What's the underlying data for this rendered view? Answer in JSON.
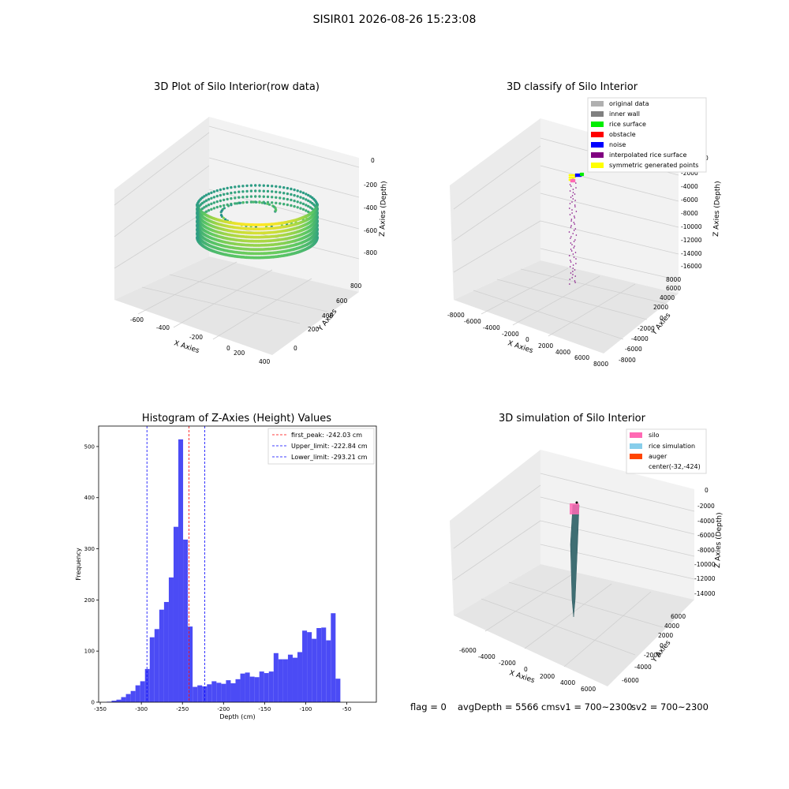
{
  "figure_title": "SISIR01 2026-08-26 15:23:08",
  "status_line": {
    "flag": "flag = 0",
    "avg_depth": "avgDepth = 5566 cmsv1 = 700~2300",
    "sv2": "sv2 = 700~2300"
  },
  "colors": {
    "hist_bar": "#4b4bf5",
    "first_peak_line": "#ff0000",
    "limit_lines": "#0000ff",
    "original_data": "#b0b0b0",
    "inner_wall": "#808080",
    "rice_surface": "#00ee00",
    "obstacle": "#ff0000",
    "noise": "#0000ff",
    "interpolated_rice_surface": "#800080",
    "symmetric_generated_points": "#ffff00",
    "silo": "#ff69b4",
    "rice_simulation": "#87ceeb",
    "auger": "#ff4500"
  },
  "chart_data": [
    {
      "type": "scatter",
      "projection": "3d",
      "title": "3D Plot of Silo Interior(row data)",
      "xlabel": "X Axies",
      "ylabel": "Y Axies",
      "zlabel": "Z Axies (Depth)",
      "x_ticks": [
        "-600",
        "-400",
        "-200",
        "0",
        "200",
        "400"
      ],
      "y_ticks": [
        "0",
        "200",
        "400",
        "600",
        "800"
      ],
      "z_ticks": [
        "0",
        "-200",
        "-400",
        "-600",
        "-800"
      ],
      "xlim": [
        -700,
        420
      ],
      "ylim": [
        -50,
        900
      ],
      "zlim": [
        -900,
        0
      ],
      "colormap": "viridis",
      "grid": true
    },
    {
      "type": "scatter",
      "projection": "3d",
      "title": "3D classify of Silo Interior",
      "xlabel": "X Axies",
      "ylabel": "Y Axies",
      "zlabel": "Z Axies (Depth)",
      "x_ticks": [
        "-8000",
        "-6000",
        "-4000",
        "-2000",
        "0",
        "2000",
        "4000",
        "6000",
        "8000"
      ],
      "y_ticks": [
        "-8000",
        "-6000",
        "-4000",
        "-2000",
        "0",
        "2000",
        "4000",
        "6000",
        "8000"
      ],
      "z_ticks": [
        "0",
        "-2000",
        "-4000",
        "-6000",
        "-8000",
        "-10000",
        "-12000",
        "-14000",
        "-16000"
      ],
      "legend": {
        "position": "top-right",
        "entries": [
          {
            "label": "original data",
            "color": "#b0b0b0"
          },
          {
            "label": "inner wall",
            "color": "#808080"
          },
          {
            "label": "rice surface",
            "color": "#00ee00"
          },
          {
            "label": "obstacle",
            "color": "#ff0000"
          },
          {
            "label": "noise",
            "color": "#0000ff"
          },
          {
            "label": "interpolated rice surface",
            "color": "#800080"
          },
          {
            "label": "symmetric generated points",
            "color": "#ffff00"
          }
        ]
      },
      "grid": true
    },
    {
      "type": "bar",
      "subtype": "histogram",
      "title": "Histogram of Z-Axies (Height) Values",
      "xlabel": "Depth (cm)",
      "ylabel": "Frequency",
      "xlim": [
        -352,
        -14
      ],
      "ylim": [
        0,
        540
      ],
      "x_ticks": [
        -350,
        -300,
        -250,
        -200,
        -150,
        -100,
        -50
      ],
      "y_ticks": [
        0,
        100,
        200,
        300,
        400,
        500
      ],
      "bin_start": -342,
      "bin_width": 5.8,
      "values": [
        1,
        3,
        5,
        10,
        16,
        22,
        33,
        41,
        65,
        127,
        143,
        181,
        196,
        244,
        343,
        514,
        318,
        148,
        30,
        33,
        31,
        35,
        41,
        38,
        36,
        43,
        37,
        45,
        56,
        58,
        50,
        49,
        60,
        57,
        60,
        96,
        84,
        84,
        93,
        87,
        98,
        140,
        137,
        124,
        145,
        146,
        121,
        174,
        46
      ],
      "vlines": [
        {
          "label": "first_peak: -242.03 cm",
          "x": -242.03,
          "color": "#ff0000"
        },
        {
          "label": "Upper_limit: -222.84 cm",
          "x": -222.84,
          "color": "#0000ff"
        },
        {
          "label": "Lower_limit: -293.21 cm",
          "x": -293.21,
          "color": "#0000ff"
        }
      ],
      "legend": {
        "position": "top-right"
      },
      "grid": false
    },
    {
      "type": "scatter",
      "projection": "3d",
      "title": "3D simulation of Silo Interior",
      "xlabel": "X Axies",
      "ylabel": "Y Axies",
      "zlabel": "Z Axies (Depth)",
      "x_ticks": [
        "-6000",
        "-4000",
        "-2000",
        "0",
        "2000",
        "4000",
        "6000"
      ],
      "y_ticks": [
        "-6000",
        "-4000",
        "-2000",
        "0",
        "2000",
        "4000",
        "6000"
      ],
      "z_ticks": [
        "0",
        "-2000",
        "-4000",
        "-6000",
        "-8000",
        "-10000",
        "-12000",
        "-14000"
      ],
      "legend": {
        "position": "top-right",
        "entries": [
          {
            "label": "silo",
            "color": "#ff69b4"
          },
          {
            "label": "rice simulation",
            "color": "#87ceeb"
          },
          {
            "label": "auger",
            "color": "#ff4500"
          },
          {
            "label": "center(-32,-424)",
            "color": ""
          }
        ]
      },
      "grid": true
    }
  ]
}
